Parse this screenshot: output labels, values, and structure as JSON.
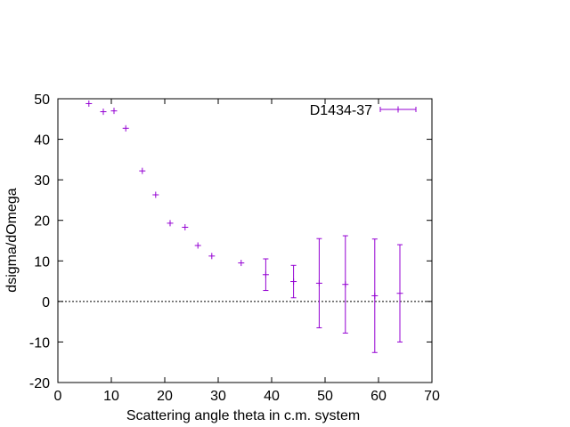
{
  "chart_data": {
    "type": "scatter",
    "title": "",
    "xlabel": "Scattering angle theta in c.m. system",
    "ylabel": "dsigma/dOmega",
    "xlim": [
      0,
      70
    ],
    "ylim": [
      -20,
      50
    ],
    "xticks": [
      0,
      10,
      20,
      30,
      40,
      50,
      60,
      70
    ],
    "yticks": [
      -20,
      -10,
      0,
      10,
      20,
      30,
      40,
      50
    ],
    "zero_line": true,
    "grid": false,
    "legend_position": "top-right",
    "series": [
      {
        "name": "D1434-37",
        "color": "#9400d3",
        "marker": "plus",
        "points": [
          {
            "x": 5.8,
            "y": 48.8,
            "err": 0
          },
          {
            "x": 8.5,
            "y": 46.8,
            "err": 0
          },
          {
            "x": 10.5,
            "y": 47.0,
            "err": 0
          },
          {
            "x": 12.7,
            "y": 42.7,
            "err": 0
          },
          {
            "x": 15.8,
            "y": 32.2,
            "err": 0
          },
          {
            "x": 18.3,
            "y": 26.3,
            "err": 0
          },
          {
            "x": 21.0,
            "y": 19.3,
            "err": 0
          },
          {
            "x": 23.8,
            "y": 18.3,
            "err": 0
          },
          {
            "x": 26.2,
            "y": 13.8,
            "err": 0
          },
          {
            "x": 28.8,
            "y": 11.2,
            "err": 0
          },
          {
            "x": 34.3,
            "y": 9.5,
            "err": 0
          },
          {
            "x": 38.9,
            "y": 6.6,
            "err": 3.9
          },
          {
            "x": 44.1,
            "y": 4.9,
            "err": 4.0
          },
          {
            "x": 48.9,
            "y": 4.5,
            "err": 11.0
          },
          {
            "x": 53.8,
            "y": 4.2,
            "err": 12.0
          },
          {
            "x": 59.3,
            "y": 1.4,
            "err": 14.0
          },
          {
            "x": 64.0,
            "y": 2.0,
            "err": 12.0
          }
        ]
      }
    ]
  }
}
